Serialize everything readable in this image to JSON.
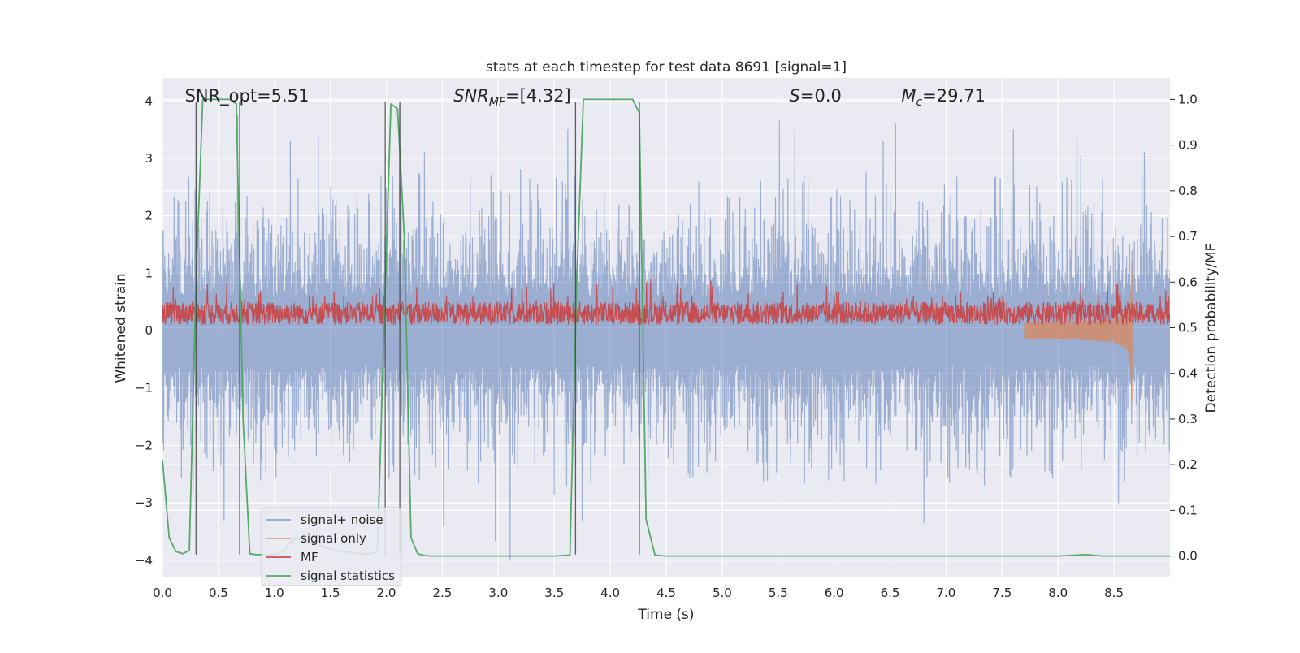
{
  "chart_data": {
    "type": "line",
    "title": "stats at each timestep for test data 8691 [signal=1]",
    "xlabel": "Time (s)",
    "ylabel": "Whitened strain",
    "y2label": "Detection probability/MF",
    "xlim": [
      0.0,
      9.0
    ],
    "ylim": [
      -4.3,
      4.4
    ],
    "y2lim": [
      -0.047,
      1.047
    ],
    "xticks": [
      0.0,
      0.5,
      1.0,
      1.5,
      2.0,
      2.5,
      3.0,
      3.5,
      4.0,
      4.5,
      5.0,
      5.5,
      6.0,
      6.5,
      7.0,
      7.5,
      8.0,
      8.5
    ],
    "xtick_labels": [
      "0.0",
      "0.5",
      "1.0",
      "1.5",
      "2.0",
      "2.5",
      "3.0",
      "3.5",
      "4.0",
      "4.5",
      "5.0",
      "5.5",
      "6.0",
      "6.5",
      "7.0",
      "7.5",
      "8.0",
      "8.5"
    ],
    "yticks": [
      -4,
      -3,
      -2,
      -1,
      0,
      1,
      2,
      3,
      4
    ],
    "ytick_labels": [
      "−4",
      "−3",
      "−2",
      "−1",
      "0",
      "1",
      "2",
      "3",
      "4"
    ],
    "y2ticks": [
      0.0,
      0.1,
      0.2,
      0.3,
      0.4,
      0.5,
      0.6,
      0.7,
      0.8,
      0.9,
      1.0
    ],
    "y2tick_labels": [
      "0.0",
      "0.1",
      "0.2",
      "0.3",
      "0.4",
      "0.5",
      "0.6",
      "0.7",
      "0.8",
      "0.9",
      "1.0"
    ],
    "grid": true,
    "legend_position": "lower-left",
    "annotations": [
      {
        "text": "SNR_opt=5.51",
        "x": 0.2,
        "italic": false
      },
      {
        "text": "SNRMF=[4.32]",
        "x": 2.6,
        "italic": true,
        "parts": [
          {
            "t": "SNR",
            "sub": false
          },
          {
            "t": "MF",
            "sub": true
          },
          {
            "t": "=[4.32]",
            "sub": false
          }
        ]
      },
      {
        "text": "S=0.0",
        "x": 5.6,
        "italic": true,
        "parts": [
          {
            "t": "S",
            "sub": false
          },
          {
            "t": "=0.0",
            "sub": false
          }
        ]
      },
      {
        "text": "Mc=29.71",
        "x": 6.6,
        "italic": true,
        "parts": [
          {
            "t": "M",
            "sub": false
          },
          {
            "t": "c",
            "sub": true
          },
          {
            "t": "=29.71",
            "sub": false
          }
        ]
      }
    ],
    "vlines": [
      0.3,
      0.69,
      1.99,
      2.12,
      3.69,
      4.26
    ],
    "series": [
      {
        "name": "signal+ noise",
        "axis": "left",
        "color": "#4c72b0",
        "opacity": 0.5,
        "kind": "noise",
        "envelope_typical": 1.6,
        "peaks": [
          [
            0.3,
            3.9
          ],
          [
            0.67,
            3.75
          ],
          [
            1.14,
            3.3
          ],
          [
            1.39,
            3.4
          ],
          [
            2.12,
            3.9
          ],
          [
            2.34,
            3.1
          ],
          [
            3.62,
            3.5
          ],
          [
            4.26,
            3.2
          ],
          [
            5.51,
            3.65
          ],
          [
            5.65,
            3.45
          ],
          [
            6.44,
            3.3
          ],
          [
            6.55,
            3.6
          ],
          [
            7.6,
            3.5
          ],
          [
            8.2,
            3.05
          ],
          [
            8.77,
            3.1
          ]
        ],
        "troughs": [
          [
            0.27,
            -2.8
          ],
          [
            0.55,
            -3.3
          ],
          [
            2.51,
            -3.4
          ],
          [
            3.1,
            -4.0
          ],
          [
            3.75,
            -3.3
          ],
          [
            6.8,
            -3.35
          ],
          [
            8.54,
            -3.0
          ]
        ],
        "points": 2600
      },
      {
        "name": "signal only",
        "axis": "left",
        "color": "#dd8452",
        "opacity": 0.7,
        "kind": "chirp",
        "start": 7.7,
        "merger": 8.66,
        "peak_amplitude": 1.2
      },
      {
        "name": "MF",
        "axis": "left",
        "color": "#c44e52",
        "opacity": 1.0,
        "kind": "mf",
        "baseline": 0.3,
        "spread": 0.3,
        "points": 2600
      },
      {
        "name": "signal statistics",
        "axis": "right",
        "color": "#55a868",
        "opacity": 1.0,
        "kind": "line",
        "x": [
          0.0,
          0.06,
          0.12,
          0.18,
          0.24,
          0.3,
          0.36,
          0.42,
          0.48,
          0.54,
          0.6,
          0.66,
          0.72,
          0.78,
          0.84,
          0.9,
          0.96,
          1.02,
          1.08,
          1.14,
          1.2,
          1.26,
          1.32,
          1.38,
          1.44,
          1.5,
          1.56,
          1.62,
          1.68,
          1.74,
          1.8,
          1.86,
          1.92,
          1.98,
          2.04,
          2.1,
          2.16,
          2.22,
          2.28,
          2.34,
          2.4,
          2.5,
          3.0,
          3.5,
          3.64,
          3.7,
          3.76,
          3.82,
          4.0,
          4.2,
          4.26,
          4.32,
          4.4,
          4.5,
          5.0,
          6.0,
          7.0,
          8.0,
          8.25,
          8.4,
          9.0
        ],
        "y": [
          0.21,
          0.04,
          0.01,
          0.005,
          0.012,
          0.6,
          1.0,
          1.0,
          1.0,
          1.0,
          1.0,
          0.99,
          0.3,
          0.005,
          0.003,
          0.003,
          0.003,
          0.004,
          0.01,
          0.03,
          0.04,
          0.035,
          0.03,
          0.025,
          0.02,
          0.015,
          0.012,
          0.01,
          0.008,
          0.006,
          0.005,
          0.005,
          0.01,
          0.5,
          0.99,
          0.98,
          0.7,
          0.04,
          0.005,
          0.001,
          0.0,
          0.0,
          0.0,
          0.0,
          0.002,
          0.6,
          1.0,
          1.0,
          1.0,
          1.0,
          0.97,
          0.08,
          0.002,
          0.0,
          0.0,
          0.0,
          0.0,
          0.0,
          0.003,
          0.0,
          0.0
        ]
      }
    ]
  }
}
